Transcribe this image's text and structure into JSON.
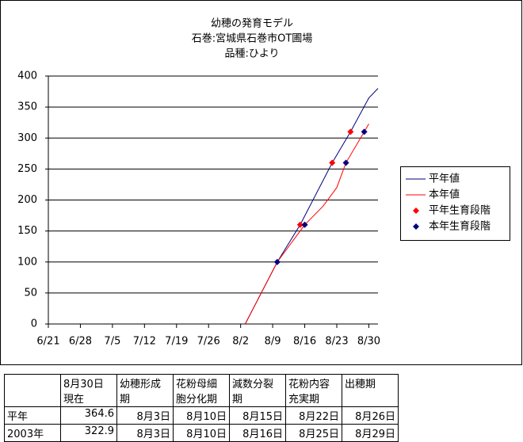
{
  "chart_data": {
    "type": "line",
    "title": [
      "幼穂の発育モデル",
      "石巻:宮城県石巻市OT圃場",
      "品種:ひより"
    ],
    "xlim": [
      "6/21",
      "9/1"
    ],
    "xticks": [
      "6/21",
      "6/28",
      "7/5",
      "7/12",
      "7/19",
      "7/26",
      "8/2",
      "8/9",
      "8/16",
      "8/23",
      "8/30"
    ],
    "ylim": [
      0,
      400
    ],
    "yticks": [
      0,
      50,
      100,
      150,
      200,
      250,
      300,
      350,
      400
    ],
    "grid": true,
    "legend": "right",
    "series": [
      {
        "name": "平年値",
        "color": "#000080",
        "mark": "line",
        "x": [
          "8/3",
          "8/10",
          "8/15",
          "8/22",
          "8/26",
          "8/30",
          "9/1"
        ],
        "values": [
          0,
          100,
          160,
          260,
          310,
          364.6,
          380
        ]
      },
      {
        "name": "本年値",
        "color": "#ff0000",
        "mark": "line",
        "x": [
          "8/3",
          "8/10",
          "8/16",
          "8/20",
          "8/23",
          "8/25",
          "8/29",
          "8/30"
        ],
        "values": [
          0,
          100,
          160,
          190,
          220,
          260,
          310,
          322.9
        ]
      },
      {
        "name": "平年生育段階",
        "color": "#ff0000",
        "mark": "diamond",
        "x": [
          "8/15",
          "8/22",
          "8/26"
        ],
        "values": [
          160,
          260,
          310
        ]
      },
      {
        "name": "本年生育段階",
        "color": "#000080",
        "mark": "diamond",
        "x": [
          "8/10",
          "8/16",
          "8/25",
          "8/29"
        ],
        "values": [
          100,
          160,
          260,
          310
        ]
      }
    ]
  },
  "table": {
    "header": [
      [
        "8月30日",
        "現在"
      ],
      [
        "幼穂形成",
        "期"
      ],
      [
        "花粉母細",
        "胞分化期"
      ],
      [
        "減数分裂",
        "期"
      ],
      [
        "花粉内容",
        "充実期"
      ],
      [
        "出穂期"
      ]
    ],
    "rows": [
      [
        "平年",
        364.6,
        "8月3日",
        "8月10日",
        "8月15日",
        "8月22日",
        "8月26日"
      ],
      [
        "2003年",
        322.9,
        "8月3日",
        "8月10日",
        "8月16日",
        "8月25日",
        "8月29日"
      ]
    ]
  }
}
